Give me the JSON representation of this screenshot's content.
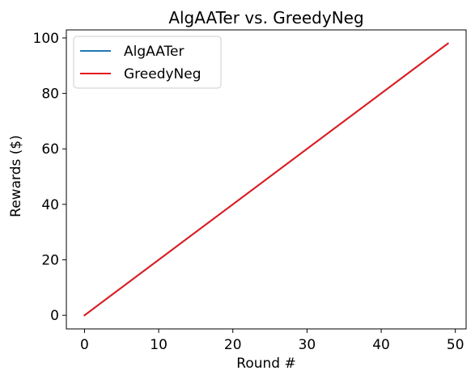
{
  "chart_data": {
    "type": "line",
    "title": "AlgAATer vs. GreedyNeg",
    "xlabel": "Round #",
    "ylabel": "Rewards ($)",
    "xlim": [
      -2.45,
      51.45
    ],
    "ylim": [
      -4.9,
      102.9
    ],
    "xticks": [
      0,
      10,
      20,
      30,
      40,
      50
    ],
    "yticks": [
      0,
      20,
      40,
      60,
      80,
      100
    ],
    "grid": false,
    "legend_position": "top-left",
    "series": [
      {
        "name": "AlgAATer",
        "color": "#1f77b4",
        "x": [
          0,
          49
        ],
        "y": [
          0,
          98
        ]
      },
      {
        "name": "GreedyNeg",
        "color": "#e41a1c",
        "x": [
          0,
          49
        ],
        "y": [
          0,
          98
        ]
      }
    ]
  }
}
